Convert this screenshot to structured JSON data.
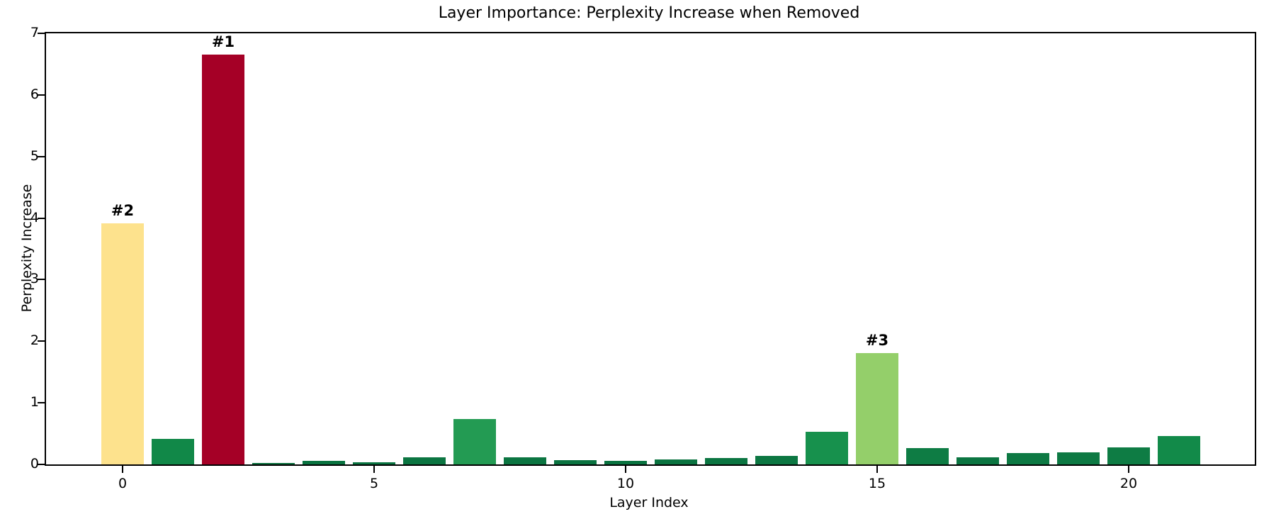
{
  "chart_data": {
    "type": "bar",
    "title": "Layer Importance: Perplexity Increase when Removed",
    "xlabel": "Layer Index",
    "ylabel": "Perplexity Increase",
    "categories": [
      0,
      1,
      2,
      3,
      4,
      5,
      6,
      7,
      8,
      9,
      10,
      11,
      12,
      13,
      14,
      15,
      16,
      17,
      18,
      19,
      20,
      21
    ],
    "values": [
      3.92,
      0.42,
      6.66,
      0.02,
      0.06,
      0.03,
      0.12,
      0.74,
      0.12,
      0.07,
      0.06,
      0.08,
      0.1,
      0.14,
      0.53,
      1.81,
      0.27,
      0.12,
      0.18,
      0.19,
      0.28,
      0.46
    ],
    "bar_colors": [
      "#FDE28D",
      "#118848",
      "#A50026",
      "#0A6E3C",
      "#0A7340",
      "#0A7340",
      "#0B7541",
      "#239B53",
      "#0B7541",
      "#0A7340",
      "#0A7340",
      "#0A7340",
      "#0B7541",
      "#0C7742",
      "#17914D",
      "#94CF6A",
      "#0E7C44",
      "#0B7541",
      "#0D7943",
      "#0D7943",
      "#0E7C44",
      "#128A49"
    ],
    "annotations": [
      {
        "bar_index": 2,
        "label": "#1"
      },
      {
        "bar_index": 0,
        "label": "#2"
      },
      {
        "bar_index": 15,
        "label": "#3"
      }
    ],
    "ylim": [
      0,
      7
    ],
    "yticks": [
      "0",
      "1",
      "2",
      "3",
      "4",
      "5",
      "6",
      "7"
    ],
    "xticks": [
      0,
      5,
      10,
      15,
      20
    ],
    "grid": false,
    "legend": null,
    "axis_color": "#000000",
    "background_color": "#ffffff"
  }
}
